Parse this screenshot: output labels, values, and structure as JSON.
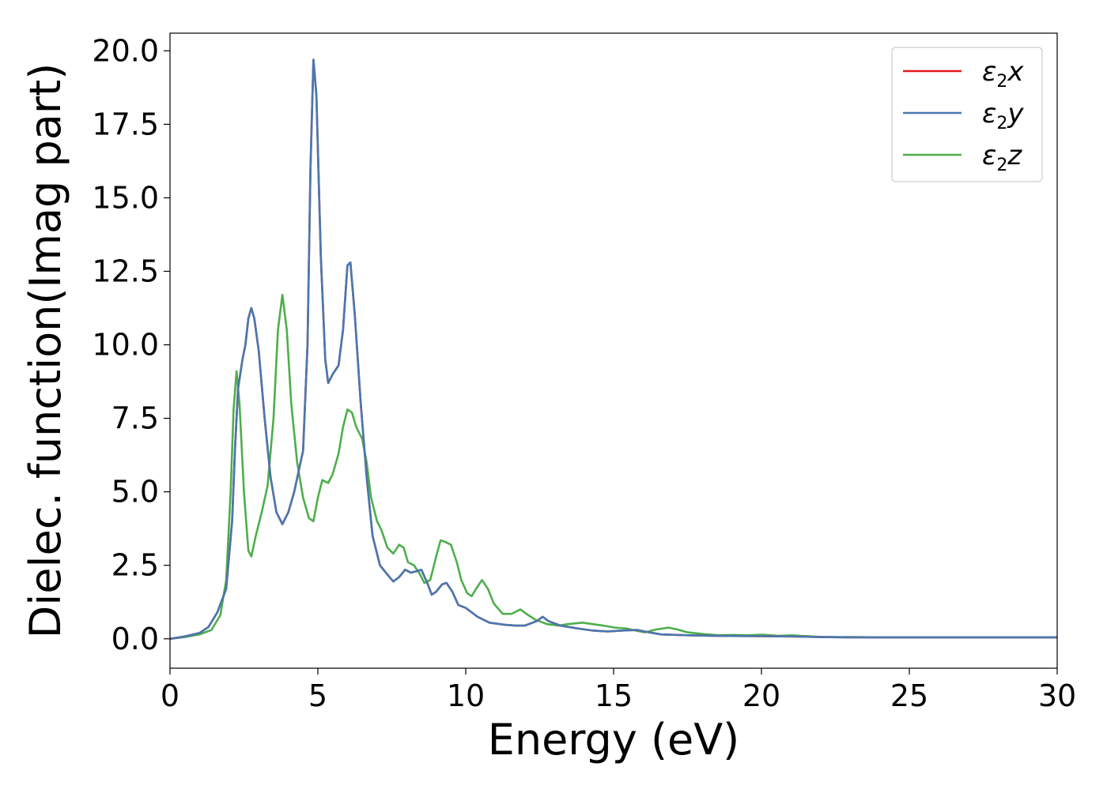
{
  "chart_data": {
    "type": "line",
    "title": "",
    "xlabel": "Energy (eV)",
    "ylabel": "Dielec. function(Imag part)",
    "xlim": [
      0,
      30
    ],
    "ylim": [
      -1.0,
      20.6
    ],
    "xticks": [
      0,
      5,
      10,
      15,
      20,
      25,
      30
    ],
    "xtick_labels": [
      "0",
      "5",
      "10",
      "15",
      "20",
      "25",
      "30"
    ],
    "yticks": [
      0,
      2.5,
      5,
      7.5,
      10,
      12.5,
      15,
      17.5,
      20
    ],
    "ytick_labels": [
      "0.0",
      "2.5",
      "5.0",
      "7.5",
      "10.0",
      "12.5",
      "15.0",
      "17.5",
      "20.0"
    ],
    "grid": false,
    "legend_position": "top-right",
    "series": [
      {
        "name": "ε₂x",
        "legend_main": "ε",
        "legend_sub": "2",
        "legend_var": "x",
        "color": "#e41a1c",
        "points": [
          [
            0,
            0
          ],
          [
            0.5,
            0.08
          ],
          [
            1.0,
            0.2
          ],
          [
            1.3,
            0.4
          ],
          [
            1.6,
            0.9
          ],
          [
            1.9,
            1.7
          ],
          [
            2.1,
            4.0
          ],
          [
            2.2,
            6.5
          ],
          [
            2.3,
            8.5
          ],
          [
            2.45,
            9.5
          ],
          [
            2.55,
            10.0
          ],
          [
            2.65,
            10.9
          ],
          [
            2.75,
            11.25
          ],
          [
            2.85,
            10.9
          ],
          [
            3.0,
            9.8
          ],
          [
            3.2,
            7.5
          ],
          [
            3.4,
            5.5
          ],
          [
            3.6,
            4.3
          ],
          [
            3.8,
            3.9
          ],
          [
            4.0,
            4.3
          ],
          [
            4.2,
            5.0
          ],
          [
            4.5,
            6.4
          ],
          [
            4.65,
            10.0
          ],
          [
            4.75,
            16.0
          ],
          [
            4.85,
            19.7
          ],
          [
            4.95,
            18.5
          ],
          [
            5.1,
            13.0
          ],
          [
            5.25,
            9.5
          ],
          [
            5.35,
            8.7
          ],
          [
            5.5,
            9.0
          ],
          [
            5.7,
            9.3
          ],
          [
            5.85,
            10.5
          ],
          [
            6.0,
            12.7
          ],
          [
            6.1,
            12.8
          ],
          [
            6.25,
            11.0
          ],
          [
            6.45,
            8.0
          ],
          [
            6.65,
            5.5
          ],
          [
            6.85,
            3.5
          ],
          [
            7.1,
            2.5
          ],
          [
            7.3,
            2.25
          ],
          [
            7.55,
            1.95
          ],
          [
            7.75,
            2.1
          ],
          [
            7.95,
            2.35
          ],
          [
            8.15,
            2.25
          ],
          [
            8.35,
            2.3
          ],
          [
            8.5,
            2.35
          ],
          [
            8.7,
            1.9
          ],
          [
            8.85,
            1.5
          ],
          [
            9.0,
            1.6
          ],
          [
            9.2,
            1.85
          ],
          [
            9.35,
            1.9
          ],
          [
            9.55,
            1.6
          ],
          [
            9.75,
            1.15
          ],
          [
            10.0,
            1.05
          ],
          [
            10.4,
            0.75
          ],
          [
            10.8,
            0.55
          ],
          [
            11.3,
            0.48
          ],
          [
            11.7,
            0.45
          ],
          [
            12.0,
            0.45
          ],
          [
            12.4,
            0.6
          ],
          [
            12.6,
            0.75
          ],
          [
            12.8,
            0.6
          ],
          [
            13.2,
            0.45
          ],
          [
            13.8,
            0.35
          ],
          [
            14.3,
            0.28
          ],
          [
            14.8,
            0.25
          ],
          [
            15.3,
            0.28
          ],
          [
            15.8,
            0.3
          ],
          [
            16.2,
            0.22
          ],
          [
            16.6,
            0.15
          ],
          [
            17.5,
            0.12
          ],
          [
            18.5,
            0.1
          ],
          [
            20,
            0.09
          ],
          [
            21,
            0.08
          ],
          [
            22,
            0.06
          ],
          [
            23,
            0.05
          ],
          [
            25,
            0.05
          ],
          [
            27,
            0.05
          ],
          [
            30,
            0.05
          ]
        ]
      },
      {
        "name": "ε₂y",
        "legend_main": "ε",
        "legend_sub": "2",
        "legend_var": "y",
        "color": "#4878b0",
        "points": [
          [
            0,
            0
          ],
          [
            0.5,
            0.08
          ],
          [
            1.0,
            0.2
          ],
          [
            1.3,
            0.4
          ],
          [
            1.6,
            0.9
          ],
          [
            1.9,
            1.7
          ],
          [
            2.1,
            4.0
          ],
          [
            2.2,
            6.5
          ],
          [
            2.3,
            8.5
          ],
          [
            2.45,
            9.5
          ],
          [
            2.55,
            10.0
          ],
          [
            2.65,
            10.9
          ],
          [
            2.75,
            11.25
          ],
          [
            2.85,
            10.9
          ],
          [
            3.0,
            9.8
          ],
          [
            3.2,
            7.5
          ],
          [
            3.4,
            5.5
          ],
          [
            3.6,
            4.3
          ],
          [
            3.8,
            3.9
          ],
          [
            4.0,
            4.3
          ],
          [
            4.2,
            5.0
          ],
          [
            4.5,
            6.4
          ],
          [
            4.65,
            10.0
          ],
          [
            4.75,
            16.0
          ],
          [
            4.85,
            19.7
          ],
          [
            4.95,
            18.5
          ],
          [
            5.1,
            13.0
          ],
          [
            5.25,
            9.5
          ],
          [
            5.35,
            8.7
          ],
          [
            5.5,
            9.0
          ],
          [
            5.7,
            9.3
          ],
          [
            5.85,
            10.5
          ],
          [
            6.0,
            12.7
          ],
          [
            6.1,
            12.8
          ],
          [
            6.25,
            11.0
          ],
          [
            6.45,
            8.0
          ],
          [
            6.65,
            5.5
          ],
          [
            6.85,
            3.5
          ],
          [
            7.1,
            2.5
          ],
          [
            7.3,
            2.25
          ],
          [
            7.55,
            1.95
          ],
          [
            7.75,
            2.1
          ],
          [
            7.95,
            2.35
          ],
          [
            8.15,
            2.25
          ],
          [
            8.35,
            2.3
          ],
          [
            8.5,
            2.35
          ],
          [
            8.7,
            1.9
          ],
          [
            8.85,
            1.5
          ],
          [
            9.0,
            1.6
          ],
          [
            9.2,
            1.85
          ],
          [
            9.35,
            1.9
          ],
          [
            9.55,
            1.6
          ],
          [
            9.75,
            1.15
          ],
          [
            10.0,
            1.05
          ],
          [
            10.4,
            0.75
          ],
          [
            10.8,
            0.55
          ],
          [
            11.3,
            0.48
          ],
          [
            11.7,
            0.45
          ],
          [
            12.0,
            0.45
          ],
          [
            12.4,
            0.6
          ],
          [
            12.6,
            0.75
          ],
          [
            12.8,
            0.6
          ],
          [
            13.2,
            0.45
          ],
          [
            13.8,
            0.35
          ],
          [
            14.3,
            0.28
          ],
          [
            14.8,
            0.25
          ],
          [
            15.3,
            0.28
          ],
          [
            15.8,
            0.3
          ],
          [
            16.2,
            0.22
          ],
          [
            16.6,
            0.15
          ],
          [
            17.5,
            0.12
          ],
          [
            18.5,
            0.1
          ],
          [
            20,
            0.09
          ],
          [
            21,
            0.08
          ],
          [
            22,
            0.06
          ],
          [
            23,
            0.05
          ],
          [
            25,
            0.05
          ],
          [
            27,
            0.05
          ],
          [
            30,
            0.05
          ]
        ]
      },
      {
        "name": "ε₂z",
        "legend_main": "ε",
        "legend_sub": "2",
        "legend_var": "z",
        "color": "#4daf4a",
        "points": [
          [
            0,
            0
          ],
          [
            0.5,
            0.06
          ],
          [
            1.0,
            0.15
          ],
          [
            1.4,
            0.3
          ],
          [
            1.7,
            0.8
          ],
          [
            1.9,
            2.0
          ],
          [
            2.05,
            5.0
          ],
          [
            2.15,
            7.8
          ],
          [
            2.25,
            9.1
          ],
          [
            2.35,
            8.0
          ],
          [
            2.5,
            5.0
          ],
          [
            2.65,
            3.0
          ],
          [
            2.75,
            2.8
          ],
          [
            2.9,
            3.5
          ],
          [
            3.1,
            4.3
          ],
          [
            3.3,
            5.2
          ],
          [
            3.5,
            7.5
          ],
          [
            3.65,
            10.5
          ],
          [
            3.8,
            11.7
          ],
          [
            3.95,
            10.5
          ],
          [
            4.1,
            8.0
          ],
          [
            4.3,
            6.0
          ],
          [
            4.5,
            4.8
          ],
          [
            4.7,
            4.1
          ],
          [
            4.85,
            4.0
          ],
          [
            5.0,
            4.8
          ],
          [
            5.15,
            5.4
          ],
          [
            5.35,
            5.3
          ],
          [
            5.5,
            5.6
          ],
          [
            5.7,
            6.3
          ],
          [
            5.85,
            7.2
          ],
          [
            6.0,
            7.8
          ],
          [
            6.15,
            7.7
          ],
          [
            6.3,
            7.2
          ],
          [
            6.5,
            6.8
          ],
          [
            6.65,
            6.0
          ],
          [
            6.8,
            4.8
          ],
          [
            7.0,
            4.0
          ],
          [
            7.15,
            3.7
          ],
          [
            7.35,
            3.1
          ],
          [
            7.55,
            2.9
          ],
          [
            7.75,
            3.2
          ],
          [
            7.9,
            3.1
          ],
          [
            8.05,
            2.6
          ],
          [
            8.25,
            2.5
          ],
          [
            8.45,
            2.2
          ],
          [
            8.6,
            1.9
          ],
          [
            8.8,
            2.0
          ],
          [
            9.0,
            2.8
          ],
          [
            9.15,
            3.35
          ],
          [
            9.3,
            3.3
          ],
          [
            9.5,
            3.2
          ],
          [
            9.7,
            2.6
          ],
          [
            9.85,
            2.0
          ],
          [
            10.05,
            1.55
          ],
          [
            10.2,
            1.45
          ],
          [
            10.35,
            1.7
          ],
          [
            10.55,
            2.0
          ],
          [
            10.75,
            1.7
          ],
          [
            10.95,
            1.2
          ],
          [
            11.25,
            0.85
          ],
          [
            11.55,
            0.85
          ],
          [
            11.85,
            1.0
          ],
          [
            12.05,
            0.85
          ],
          [
            12.35,
            0.65
          ],
          [
            12.75,
            0.5
          ],
          [
            13.15,
            0.45
          ],
          [
            13.45,
            0.5
          ],
          [
            13.95,
            0.55
          ],
          [
            14.3,
            0.5
          ],
          [
            14.65,
            0.45
          ],
          [
            15.05,
            0.38
          ],
          [
            15.45,
            0.35
          ],
          [
            15.75,
            0.28
          ],
          [
            16.05,
            0.22
          ],
          [
            16.45,
            0.32
          ],
          [
            16.85,
            0.38
          ],
          [
            17.15,
            0.32
          ],
          [
            17.5,
            0.22
          ],
          [
            18.05,
            0.16
          ],
          [
            18.55,
            0.12
          ],
          [
            19.05,
            0.13
          ],
          [
            19.55,
            0.12
          ],
          [
            20.05,
            0.14
          ],
          [
            20.55,
            0.1
          ],
          [
            21.05,
            0.12
          ],
          [
            21.3,
            0.1
          ],
          [
            21.55,
            0.09
          ],
          [
            22.05,
            0.06
          ],
          [
            23.05,
            0.06
          ],
          [
            24.05,
            0.05
          ],
          [
            25.05,
            0.05
          ],
          [
            27.05,
            0.05
          ],
          [
            30,
            0.05
          ]
        ]
      }
    ]
  }
}
